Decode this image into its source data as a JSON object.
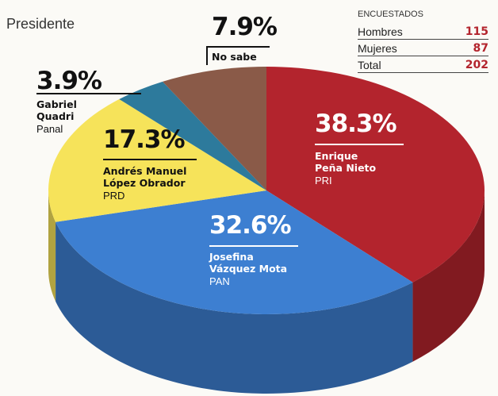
{
  "title": "Presidente",
  "respondents": {
    "heading": "ENCUESTADOS",
    "rows": [
      {
        "label": "Hombres",
        "value": "115"
      },
      {
        "label": "Mujeres",
        "value": "87"
      },
      {
        "label": "Total",
        "value": "202"
      }
    ]
  },
  "colors": {
    "pri": "#b3242d",
    "pan": "#3d7fd1",
    "prd": "#f6e35a",
    "panal": "#2d7a9c",
    "nosabe": "#8a5a48"
  },
  "chart_data": {
    "type": "pie",
    "title": "Presidente",
    "slices": [
      {
        "pct_label": "38.3%",
        "value": 38.3,
        "name_lines": [
          "Enrique",
          "Peña Nieto"
        ],
        "party": "PRI",
        "color": "#b3242d"
      },
      {
        "pct_label": "32.6%",
        "value": 32.6,
        "name_lines": [
          "Josefina",
          "Vázquez Mota"
        ],
        "party": "PAN",
        "color": "#3d7fd1"
      },
      {
        "pct_label": "17.3%",
        "value": 17.3,
        "name_lines": [
          "Andrés Manuel",
          "López Obrador"
        ],
        "party": "PRD",
        "color": "#f6e35a"
      },
      {
        "pct_label": "3.9%",
        "value": 3.9,
        "name_lines": [
          "Gabriel",
          "Quadri"
        ],
        "party": "Panal",
        "color": "#2d7a9c"
      },
      {
        "pct_label": "7.9%",
        "value": 7.9,
        "name_lines": [
          "No sabe"
        ],
        "party": "",
        "color": "#8a5a48"
      }
    ]
  }
}
